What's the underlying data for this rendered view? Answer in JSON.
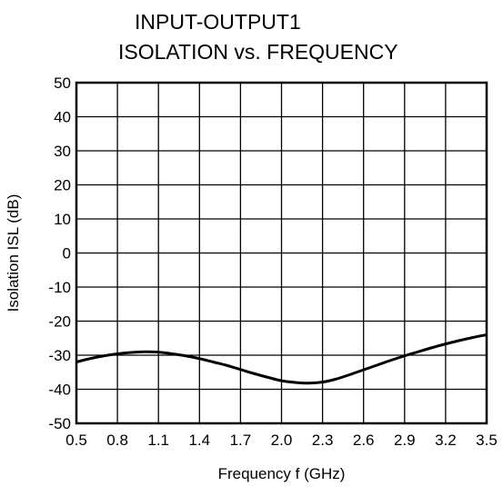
{
  "chart_data": {
    "type": "line",
    "title_line1": "INPUT-OUTPUT1",
    "title_line2": "ISOLATION vs. FREQUENCY",
    "xlabel": "Frequency  f (GHz)",
    "ylabel": "Isolation  ISL (dB)",
    "xlim": [
      0.5,
      3.5
    ],
    "ylim": [
      -50,
      50
    ],
    "xticks": [
      "0.5",
      "0.8",
      "1.1",
      "1.4",
      "1.7",
      "2.0",
      "2.3",
      "2.6",
      "2.9",
      "3.2",
      "3.5"
    ],
    "yticks": [
      "50",
      "40",
      "30",
      "20",
      "10",
      "0",
      "-10",
      "-20",
      "-30",
      "-40",
      "-50"
    ],
    "grid": true,
    "series": [
      {
        "x": [
          0.5,
          0.6,
          0.7,
          0.8,
          0.9,
          1.0,
          1.1,
          1.2,
          1.3,
          1.4,
          1.5,
          1.6,
          1.7,
          1.8,
          1.9,
          2.0,
          2.1,
          2.2,
          2.3,
          2.4,
          2.5,
          2.6,
          2.7,
          2.8,
          2.9,
          3.0,
          3.1,
          3.2,
          3.3,
          3.4,
          3.5
        ],
        "y": [
          -32.0,
          -31.0,
          -30.2,
          -29.6,
          -29.2,
          -29.0,
          -29.1,
          -29.6,
          -30.2,
          -31.0,
          -32.0,
          -33.0,
          -34.2,
          -35.4,
          -36.5,
          -37.5,
          -38.0,
          -38.2,
          -37.9,
          -37.0,
          -35.7,
          -34.3,
          -32.9,
          -31.5,
          -30.2,
          -29.0,
          -27.8,
          -26.7,
          -25.7,
          -24.8,
          -24.0
        ]
      }
    ],
    "colors": {
      "line": "#000000",
      "grid": "#000000",
      "background": "#ffffff"
    }
  }
}
